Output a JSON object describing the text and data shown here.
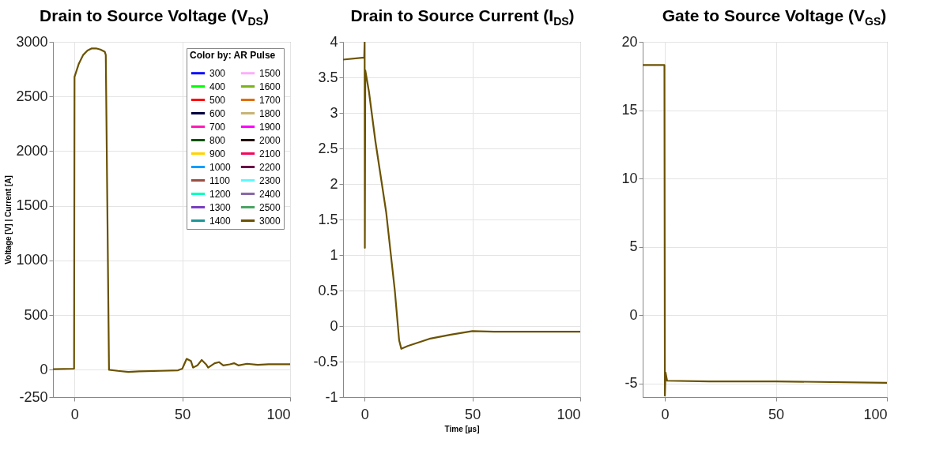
{
  "chart_data": [
    {
      "type": "line",
      "title": "Drain to Source Voltage (V$_{DS}$)",
      "ylabel": "Voltage [V] | Current [A]",
      "legend_title": "Color by: AR Pulse",
      "legend": "top right",
      "grid": true,
      "line_style": "solid",
      "xlim": [
        -10,
        100
      ],
      "xticks": [
        0,
        50,
        100
      ],
      "ylim": [
        -250,
        3000
      ],
      "yticks": [
        -250,
        0,
        500,
        1000,
        1500,
        2000,
        2500,
        3000
      ],
      "x": [
        -10,
        -0.2,
        0,
        2,
        4,
        6,
        8,
        10,
        12,
        14,
        14.5,
        16,
        20,
        25,
        30,
        40,
        48,
        50,
        52,
        54,
        55,
        57,
        59,
        61,
        62,
        65,
        67,
        69,
        72,
        74,
        76,
        80,
        85,
        90,
        95,
        100
      ],
      "series": [
        {
          "name": "300",
          "color": "#0000ff",
          "values": [
            null,
            null,
            null,
            null,
            null,
            null,
            null,
            null,
            null,
            null,
            null,
            null,
            null,
            null,
            null,
            null,
            null,
            null,
            null,
            null,
            null,
            null,
            null,
            null,
            null,
            null,
            null,
            null,
            null,
            null,
            null,
            null,
            null,
            null,
            null,
            null
          ]
        },
        {
          "name": "400",
          "color": "#00ff00",
          "values": [
            null,
            null,
            null,
            null,
            null,
            null,
            null,
            null,
            null,
            null,
            null,
            null,
            null,
            null,
            null,
            null,
            null,
            null,
            null,
            null,
            null,
            null,
            null,
            null,
            null,
            null,
            null,
            null,
            null,
            null,
            null,
            null,
            null,
            null,
            null,
            null
          ]
        },
        {
          "name": "500",
          "color": "#ff0000",
          "values": [
            null,
            null,
            null,
            null,
            null,
            null,
            null,
            null,
            null,
            null,
            null,
            null,
            null,
            null,
            null,
            null,
            null,
            null,
            null,
            null,
            null,
            null,
            null,
            null,
            null,
            null,
            null,
            null,
            null,
            null,
            null,
            null,
            null,
            null,
            null,
            null
          ]
        },
        {
          "name": "600",
          "color": "#00003d",
          "values": [
            null,
            null,
            null,
            null,
            null,
            null,
            null,
            null,
            null,
            null,
            null,
            null,
            null,
            null,
            null,
            null,
            null,
            null,
            null,
            null,
            null,
            null,
            null,
            null,
            null,
            null,
            null,
            null,
            null,
            null,
            null,
            null,
            null,
            null,
            null,
            null
          ]
        },
        {
          "name": "700",
          "color": "#ff1ab8",
          "values": [
            null,
            null,
            null,
            null,
            null,
            null,
            null,
            null,
            null,
            null,
            null,
            null,
            null,
            null,
            null,
            null,
            null,
            null,
            null,
            null,
            null,
            null,
            null,
            null,
            null,
            null,
            null,
            null,
            null,
            null,
            null,
            null,
            null,
            null,
            null,
            null
          ]
        },
        {
          "name": "800",
          "color": "#005200",
          "values": [
            null,
            null,
            null,
            null,
            null,
            null,
            null,
            null,
            null,
            null,
            null,
            null,
            null,
            null,
            null,
            null,
            null,
            null,
            null,
            null,
            null,
            null,
            null,
            null,
            null,
            null,
            null,
            null,
            null,
            null,
            null,
            null,
            null,
            null,
            null,
            null
          ]
        },
        {
          "name": "900",
          "color": "#ffd300",
          "values": [
            null,
            null,
            null,
            null,
            null,
            null,
            null,
            null,
            null,
            null,
            null,
            null,
            null,
            null,
            null,
            null,
            null,
            null,
            null,
            null,
            null,
            null,
            null,
            null,
            null,
            null,
            null,
            null,
            null,
            null,
            null,
            null,
            null,
            null,
            null,
            null
          ]
        },
        {
          "name": "1000",
          "color": "#009fff",
          "values": [
            null,
            null,
            null,
            null,
            null,
            null,
            null,
            null,
            null,
            null,
            null,
            null,
            null,
            null,
            null,
            null,
            null,
            null,
            null,
            null,
            null,
            null,
            null,
            null,
            null,
            null,
            null,
            null,
            null,
            null,
            null,
            null,
            null,
            null,
            null,
            null
          ]
        },
        {
          "name": "1100",
          "color": "#9a4d42",
          "values": [
            null,
            null,
            null,
            null,
            null,
            null,
            null,
            null,
            null,
            null,
            null,
            null,
            null,
            null,
            null,
            null,
            null,
            null,
            null,
            null,
            null,
            null,
            null,
            null,
            null,
            null,
            null,
            null,
            null,
            null,
            null,
            null,
            null,
            null,
            null,
            null
          ]
        },
        {
          "name": "1200",
          "color": "#00ffbe",
          "values": [
            null,
            null,
            null,
            null,
            null,
            null,
            null,
            null,
            null,
            null,
            null,
            null,
            null,
            null,
            null,
            null,
            null,
            null,
            null,
            null,
            null,
            null,
            null,
            null,
            null,
            null,
            null,
            null,
            null,
            null,
            null,
            null,
            null,
            null,
            null,
            null
          ]
        },
        {
          "name": "1300",
          "color": "#783fc1",
          "values": [
            null,
            null,
            null,
            null,
            null,
            null,
            null,
            null,
            null,
            null,
            null,
            null,
            null,
            null,
            null,
            null,
            null,
            null,
            null,
            null,
            null,
            null,
            null,
            null,
            null,
            null,
            null,
            null,
            null,
            null,
            null,
            null,
            null,
            null,
            null,
            null
          ]
        },
        {
          "name": "1400",
          "color": "#1f9698",
          "values": [
            null,
            null,
            null,
            null,
            null,
            null,
            null,
            null,
            null,
            null,
            null,
            null,
            null,
            null,
            null,
            null,
            null,
            null,
            null,
            null,
            null,
            null,
            null,
            null,
            null,
            null,
            null,
            null,
            null,
            null,
            null,
            null,
            null,
            null,
            null,
            null
          ]
        },
        {
          "name": "1500",
          "color": "#ffacfd",
          "values": [
            null,
            null,
            null,
            null,
            null,
            null,
            null,
            null,
            null,
            null,
            null,
            null,
            null,
            null,
            null,
            null,
            null,
            null,
            null,
            null,
            null,
            null,
            null,
            null,
            null,
            null,
            null,
            null,
            null,
            null,
            null,
            null,
            null,
            null,
            null,
            null
          ]
        },
        {
          "name": "1600",
          "color": "#7cb21a",
          "values": [
            null,
            null,
            null,
            null,
            null,
            null,
            null,
            null,
            null,
            null,
            null,
            null,
            null,
            null,
            null,
            null,
            null,
            null,
            null,
            null,
            null,
            null,
            null,
            null,
            null,
            null,
            null,
            null,
            null,
            null,
            null,
            null,
            null,
            null,
            null,
            null
          ]
        },
        {
          "name": "1700",
          "color": "#e06e0a",
          "values": [
            null,
            null,
            null,
            null,
            null,
            null,
            null,
            null,
            null,
            null,
            null,
            null,
            null,
            null,
            null,
            null,
            null,
            null,
            null,
            null,
            null,
            null,
            null,
            null,
            null,
            null,
            null,
            null,
            null,
            null,
            null,
            null,
            null,
            null,
            null,
            null
          ]
        },
        {
          "name": "1800",
          "color": "#c8b575",
          "values": [
            null,
            null,
            null,
            null,
            null,
            null,
            null,
            null,
            null,
            null,
            null,
            null,
            null,
            null,
            null,
            null,
            null,
            null,
            null,
            null,
            null,
            null,
            null,
            null,
            null,
            null,
            null,
            null,
            null,
            null,
            null,
            null,
            null,
            null,
            null,
            null
          ]
        },
        {
          "name": "1900",
          "color": "#ff00ff",
          "values": [
            null,
            null,
            null,
            null,
            null,
            null,
            null,
            null,
            null,
            null,
            null,
            null,
            null,
            null,
            null,
            null,
            null,
            null,
            null,
            null,
            null,
            null,
            null,
            null,
            null,
            null,
            null,
            null,
            null,
            null,
            null,
            null,
            null,
            null,
            null,
            null
          ]
        },
        {
          "name": "2000",
          "color": "#201000",
          "values": [
            null,
            null,
            null,
            null,
            null,
            null,
            null,
            null,
            null,
            null,
            null,
            null,
            null,
            null,
            null,
            null,
            null,
            null,
            null,
            null,
            null,
            null,
            null,
            null,
            null,
            null,
            null,
            null,
            null,
            null,
            null,
            null,
            null,
            null,
            null,
            null
          ]
        },
        {
          "name": "2100",
          "color": "#f1085c",
          "values": [
            null,
            null,
            null,
            null,
            null,
            null,
            null,
            null,
            null,
            null,
            null,
            null,
            null,
            null,
            null,
            null,
            null,
            null,
            null,
            null,
            null,
            null,
            null,
            null,
            null,
            null,
            null,
            null,
            null,
            null,
            null,
            null,
            null,
            null,
            null,
            null
          ]
        },
        {
          "name": "2200",
          "color": "#6a0045",
          "values": [
            null,
            null,
            null,
            null,
            null,
            null,
            null,
            null,
            null,
            null,
            null,
            null,
            null,
            null,
            null,
            null,
            null,
            null,
            null,
            null,
            null,
            null,
            null,
            null,
            null,
            null,
            null,
            null,
            null,
            null,
            null,
            null,
            null,
            null,
            null,
            null
          ]
        },
        {
          "name": "2300",
          "color": "#5cf8ff",
          "values": [
            null,
            null,
            null,
            null,
            null,
            null,
            null,
            null,
            null,
            null,
            null,
            null,
            null,
            null,
            null,
            null,
            null,
            null,
            null,
            null,
            null,
            null,
            null,
            null,
            null,
            null,
            null,
            null,
            null,
            null,
            null,
            null,
            null,
            null,
            null,
            null
          ]
        },
        {
          "name": "2400",
          "color": "#8968a5",
          "values": [
            null,
            null,
            null,
            null,
            null,
            null,
            null,
            null,
            null,
            null,
            null,
            null,
            null,
            null,
            null,
            null,
            null,
            null,
            null,
            null,
            null,
            null,
            null,
            null,
            null,
            null,
            null,
            null,
            null,
            null,
            null,
            null,
            null,
            null,
            null,
            null
          ]
        },
        {
          "name": "2500",
          "color": "#4ba364",
          "values": [
            null,
            null,
            null,
            null,
            null,
            null,
            null,
            null,
            null,
            null,
            null,
            null,
            null,
            null,
            null,
            null,
            null,
            null,
            null,
            null,
            null,
            null,
            null,
            null,
            null,
            null,
            null,
            null,
            null,
            null,
            null,
            null,
            null,
            null,
            null,
            null
          ]
        },
        {
          "name": "3000",
          "color": "#6b5200",
          "values": [
            5,
            10,
            2680,
            2800,
            2880,
            2920,
            2940,
            2940,
            2930,
            2910,
            2880,
            0,
            -10,
            -20,
            -15,
            -10,
            -5,
            10,
            100,
            80,
            20,
            40,
            90,
            50,
            20,
            60,
            70,
            40,
            50,
            60,
            40,
            55,
            45,
            50,
            50,
            50
          ]
        }
      ]
    },
    {
      "type": "line",
      "title": "Drain to Source Current (I$_{DS}$)",
      "xlabel": "Time [µs]",
      "grid": true,
      "line_style": "solid",
      "xlim": [
        -10,
        100
      ],
      "xticks": [
        0,
        50,
        100
      ],
      "ylim": [
        -1,
        4
      ],
      "yticks": [
        -1,
        -0.5,
        0,
        0.5,
        1,
        1.5,
        2,
        2.5,
        3,
        3.5,
        4
      ],
      "x": [
        -10,
        -0.2,
        0,
        0.1,
        0.3,
        2,
        5,
        10,
        14,
        16,
        17,
        20,
        30,
        40,
        50,
        60,
        80,
        100
      ],
      "series": [
        {
          "color": "#6b5200",
          "values": [
            3.75,
            3.78,
            4,
            1.1,
            3.6,
            3.3,
            2.6,
            1.6,
            0.5,
            -0.2,
            -0.32,
            -0.28,
            -0.18,
            -0.12,
            -0.07,
            -0.08,
            -0.08,
            -0.08
          ]
        }
      ]
    },
    {
      "type": "line",
      "title": "Gate to Source Voltage (V$_{GS}$)",
      "grid": true,
      "line_style": "solid",
      "xlim": [
        -10,
        100
      ],
      "xticks": [
        0,
        50,
        100
      ],
      "ylim": [
        -6,
        20
      ],
      "yticks": [
        -5,
        0,
        5,
        10,
        15,
        20
      ],
      "x": [
        -10,
        -0.2,
        0,
        0.3,
        1,
        20,
        50,
        100
      ],
      "series": [
        {
          "color": "#6b5200",
          "values": [
            18.3,
            18.3,
            -5.9,
            -4.2,
            -4.8,
            -4.85,
            -4.85,
            -4.95
          ]
        }
      ]
    }
  ]
}
